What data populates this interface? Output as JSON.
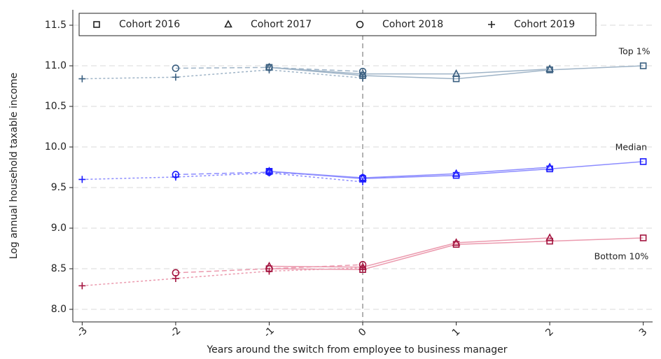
{
  "chart_data": {
    "type": "line",
    "x_label": "Years around the switch from employee to business manager",
    "y_label": "Log annual household taxable income",
    "xlim": [
      -3.1,
      3.1
    ],
    "ylim": [
      7.845,
      11.69
    ],
    "xticks": [
      -3,
      -2,
      -1,
      0,
      1,
      2,
      3
    ],
    "yticks": [
      {
        "value": 8,
        "label": "8.0"
      },
      8.5,
      {
        "value": 9,
        "label": "9.0"
      },
      9.5,
      {
        "value": 10,
        "label": "10.0"
      },
      10.5,
      {
        "value": 11,
        "label": "11.0"
      },
      11.5
    ],
    "grid": true,
    "vline": 0,
    "legend": "top",
    "cohorts": [
      {
        "name": "Cohort 2016",
        "marker": "square",
        "dash": "solid"
      },
      {
        "name": "Cohort 2017",
        "marker": "triangle",
        "dash": "solid"
      },
      {
        "name": "Cohort 2018",
        "marker": "circle",
        "dash": "dashed"
      },
      {
        "name": "Cohort 2019",
        "marker": "plus",
        "dash": "dotted"
      }
    ],
    "groups": [
      {
        "label": "Top 1%",
        "line_color": "#9fb4c7",
        "marker_color": "#3a5f80",
        "series": [
          {
            "x": [
              -1,
              0,
              1,
              2,
              3
            ],
            "values": [
              10.98,
              10.88,
              10.84,
              10.95,
              11.0
            ]
          },
          {
            "x": [
              -1,
              0,
              1,
              2
            ],
            "values": [
              10.98,
              10.9,
              10.9,
              10.96
            ]
          },
          {
            "x": [
              -2,
              -1,
              0
            ],
            "values": [
              10.97,
              10.98,
              10.93
            ]
          },
          {
            "x": [
              -3,
              -2,
              -1,
              0
            ],
            "values": [
              10.84,
              10.86,
              10.95,
              10.85
            ]
          }
        ]
      },
      {
        "label": "Median",
        "line_color": "#8c8cff",
        "marker_color": "#1a1aff",
        "series": [
          {
            "x": [
              -1,
              0,
              1,
              2,
              3
            ],
            "values": [
              9.7,
              9.61,
              9.65,
              9.73,
              9.82
            ]
          },
          {
            "x": [
              -1,
              0,
              1,
              2
            ],
            "values": [
              9.7,
              9.62,
              9.67,
              9.75
            ]
          },
          {
            "x": [
              -2,
              -1,
              0
            ],
            "values": [
              9.66,
              9.69,
              9.62
            ]
          },
          {
            "x": [
              -3,
              -2,
              -1,
              0
            ],
            "values": [
              9.6,
              9.63,
              9.68,
              9.57
            ]
          }
        ]
      },
      {
        "label": "Bottom 10%",
        "line_color": "#eb9aae",
        "marker_color": "#a3143f",
        "series": [
          {
            "x": [
              -1,
              0,
              1,
              2,
              3
            ],
            "values": [
              8.5,
              8.49,
              8.8,
              8.84,
              8.88
            ]
          },
          {
            "x": [
              -1,
              0,
              1,
              2
            ],
            "values": [
              8.53,
              8.52,
              8.82,
              8.88
            ]
          },
          {
            "x": [
              -2,
              -1,
              0
            ],
            "values": [
              8.45,
              8.5,
              8.55
            ]
          },
          {
            "x": [
              -3,
              -2,
              -1,
              0
            ],
            "values": [
              8.29,
              8.38,
              8.47,
              8.51
            ]
          }
        ]
      }
    ]
  }
}
